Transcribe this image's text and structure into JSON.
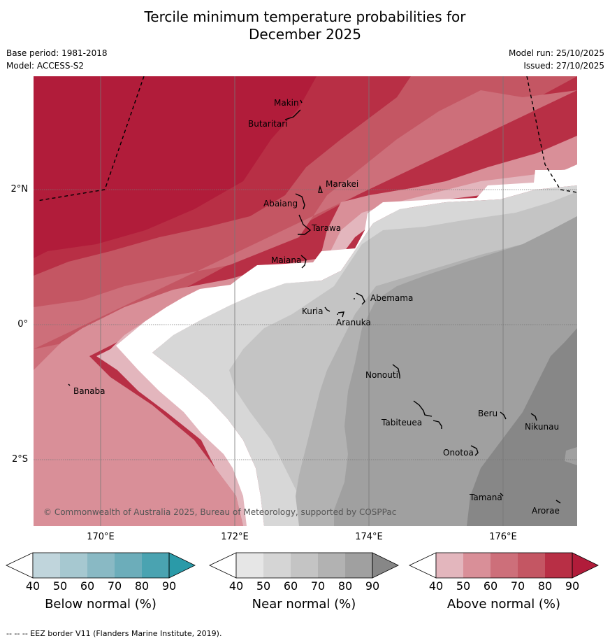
{
  "title_line1": "Tercile minimum temperature probabilities for",
  "title_line2": "December 2025",
  "meta": {
    "base_period": "Base period: 1981-2018",
    "model": "Model: ACCESS-S2",
    "model_run": "Model run: 25/10/2025",
    "issued": "Issued: 27/10/2025"
  },
  "axes": {
    "lat_labels": [
      "2°N",
      "0°",
      "2°S"
    ],
    "lon_labels": [
      "170°E",
      "172°E",
      "174°E",
      "176°E"
    ]
  },
  "islands": {
    "makin": "Makin",
    "butaritari": "Butaritari",
    "marakei": "Marakei",
    "abaiang": "Abaiang",
    "tarawa": "Tarawa",
    "maiana": "Maiana",
    "abemama": "Abemama",
    "kuria": "Kuria",
    "aranuka": "Aranuka",
    "banaba": "Banaba",
    "nonouti": "Nonouti",
    "beru": "Beru",
    "tabiteuea": "Tabiteuea",
    "nikunau": "Nikunau",
    "onotoa": "Onotoa",
    "tamana": "Tamana",
    "arorae": "Arorae"
  },
  "copyright": "© Commonwealth of Australia 2025, Bureau of Meteorology, supported by COSPPac",
  "colorbars": {
    "below": {
      "title": "Below normal (%)",
      "colors": [
        "#c0d5dc",
        "#a6c8d0",
        "#89b9c4",
        "#6cadba",
        "#4aa3b1",
        "#2a9aa8"
      ]
    },
    "near": {
      "title": "Near normal (%)",
      "colors": [
        "#e6e6e6",
        "#d5d5d5",
        "#c4c4c4",
        "#b2b2b2",
        "#a0a0a0",
        "#878787"
      ]
    },
    "above": {
      "title": "Above normal (%)",
      "colors": [
        "#e3b6bd",
        "#d98f98",
        "#cd6f7a",
        "#c45663",
        "#b82f45",
        "#b11c3a"
      ]
    },
    "ticks": [
      "40",
      "50",
      "60",
      "70",
      "80",
      "90"
    ]
  },
  "footer": "--  --  -- EEZ border V11 (Flanders Marine Institute, 2019)."
}
